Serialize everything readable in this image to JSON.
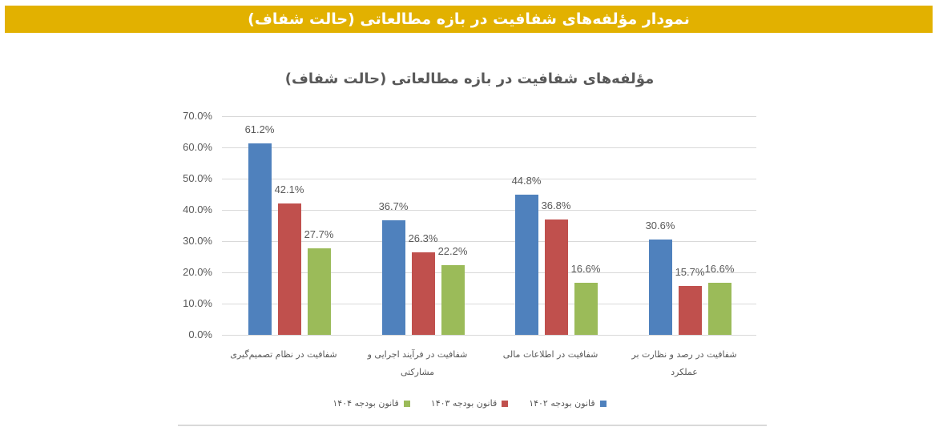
{
  "banner": {
    "title": "نمودار مؤلفه‌های شفافیت در بازه مطالعاتی (حالت شفاف)",
    "color": "#e2b100"
  },
  "chart_data": {
    "type": "bar",
    "title": "مؤلفه‌های شفافیت در بازه مطالعاتی (حالت شفاف)",
    "xlabel": "",
    "ylabel": "",
    "ylim": [
      0,
      70
    ],
    "yticks": [
      "0.0%",
      "10.0%",
      "20.0%",
      "30.0%",
      "40.0%",
      "50.0%",
      "60.0%",
      "70.0%"
    ],
    "grid": true,
    "legend_position": "bottom",
    "categories": [
      "شفافیت در نظام تصمیم‌گیری",
      "شفافیت در فرآیند اجرایی و مشارکتی",
      "شفافیت در اطلاعات مالی",
      "شفافیت در رصد و نظارت بر عملکرد"
    ],
    "series": [
      {
        "name": "قانون بودجه ۱۴۰۲",
        "color": "#4f81bd",
        "values": [
          61.2,
          36.7,
          44.8,
          30.6
        ],
        "labels": [
          "61.2%",
          "36.7%",
          "44.8%",
          "30.6%"
        ]
      },
      {
        "name": "قانون بودجه ۱۴۰۳",
        "color": "#c0504d",
        "values": [
          42.1,
          26.3,
          36.8,
          15.7
        ],
        "labels": [
          "42.1%",
          "26.3%",
          "36.8%",
          "15.7%"
        ]
      },
      {
        "name": "قانون بودجه ۱۴۰۴",
        "color": "#9bbb59",
        "values": [
          27.7,
          22.2,
          16.6,
          16.6
        ],
        "labels": [
          "27.7%",
          "22.2%",
          "16.6%",
          "16.6%"
        ]
      }
    ]
  }
}
